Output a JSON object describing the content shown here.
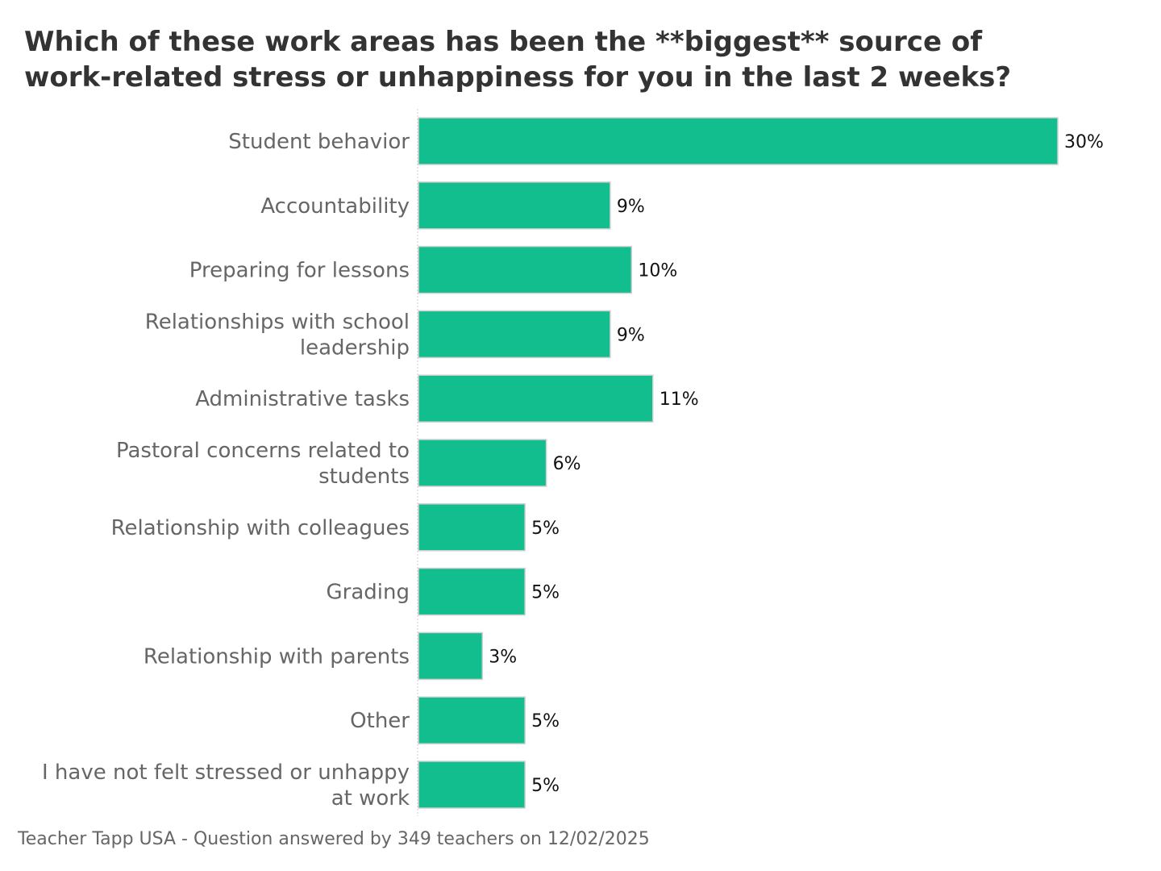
{
  "title": "Which of these work areas has been the **biggest** source of\nwork-related stress or unhappiness for you in the last 2 weeks?",
  "footer": "Teacher Tapp USA - Question answered by 349 teachers on 12/02/2025",
  "colors": {
    "bar": "#12bd8e",
    "bar_edge": "#d0d0d0",
    "category_text": "#666666",
    "value_text": "#111111",
    "title_text": "#333333"
  },
  "chart_data": {
    "type": "bar",
    "orientation": "horizontal",
    "categories": [
      [
        "Student behavior"
      ],
      [
        "Accountability"
      ],
      [
        "Preparing for lessons"
      ],
      [
        "Relationships with school",
        "leadership"
      ],
      [
        "Administrative tasks"
      ],
      [
        "Pastoral concerns related to",
        "students"
      ],
      [
        "Relationship with colleagues"
      ],
      [
        "Grading"
      ],
      [
        "Relationship with parents"
      ],
      [
        "Other"
      ],
      [
        "I have not felt stressed or unhappy",
        "at work"
      ]
    ],
    "values": [
      30,
      9,
      10,
      9,
      11,
      6,
      5,
      5,
      3,
      5,
      5
    ],
    "value_labels": [
      "30%",
      "9%",
      "10%",
      "9%",
      "11%",
      "6%",
      "5%",
      "5%",
      "3%",
      "5%",
      "5%"
    ],
    "xlim": [
      0,
      30
    ],
    "grid": false,
    "legend": "none"
  }
}
